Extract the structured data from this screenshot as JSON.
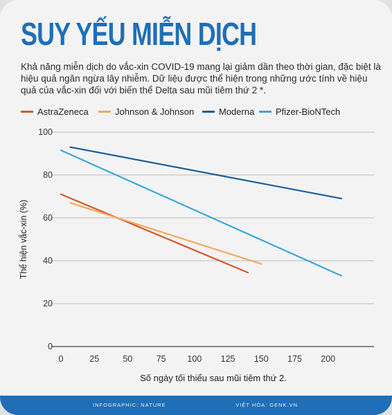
{
  "title": "SUY YẾU MIỄN DỊCH",
  "description": "Khả năng miễn dịch do vắc-xin COVID-19 mang lại giảm dần theo thời gian, đặc biệt là hiệu quả ngăn ngừa lây nhiễm. Dữ liệu được thể hiện trong những ước tính về hiệu quả của vắc-xin đối với biến thể Delta sau mũi tiêm thứ 2 *.",
  "footer": {
    "left": "INFOGRAPHIC: NATURE",
    "right": "VIỆT HÓA: GENK.VN"
  },
  "chart_data": {
    "type": "line",
    "xlabel": "Số ngày tối thiểu sau mũi tiêm thứ 2.",
    "ylabel": "Thể hiện vắc-xin (%)",
    "xlim": [
      0,
      210
    ],
    "ylim": [
      0,
      100
    ],
    "xticks": [
      0,
      25,
      50,
      75,
      100,
      125,
      150,
      175,
      200
    ],
    "yticks": [
      0,
      20,
      40,
      60,
      80,
      100
    ],
    "grid": "horizontal",
    "legend_position": "top",
    "series": [
      {
        "name": "AstraZeneca",
        "color": "#d9572b",
        "points": [
          [
            0,
            71
          ],
          [
            140,
            34.5
          ]
        ]
      },
      {
        "name": "Johnson & Johnson",
        "color": "#f2a95b",
        "points": [
          [
            7,
            67
          ],
          [
            150,
            38.5
          ]
        ]
      },
      {
        "name": "Moderna",
        "color": "#1b5e9a",
        "points": [
          [
            7,
            93
          ],
          [
            210,
            69
          ]
        ]
      },
      {
        "name": "Pfizer-BioNTech",
        "color": "#3ba7d9",
        "points": [
          [
            0,
            91.5
          ],
          [
            210,
            33
          ]
        ]
      }
    ]
  }
}
